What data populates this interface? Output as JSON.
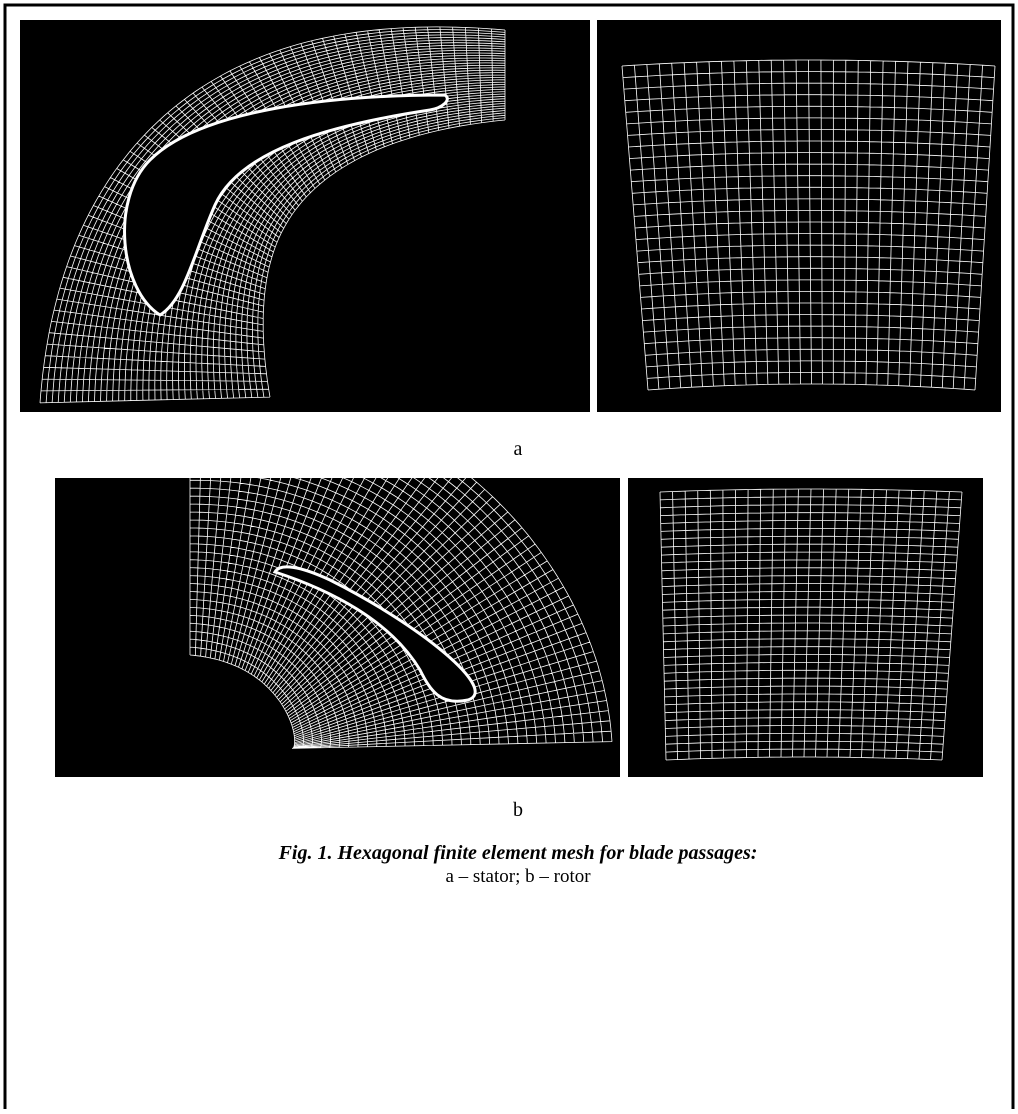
{
  "figure": {
    "panels": [
      {
        "label": "a"
      },
      {
        "label": "b"
      }
    ],
    "caption": {
      "title": "Fig. 1. Hexagonal finite element mesh for blade passages:",
      "text": "a – stator; b – rotor"
    }
  }
}
